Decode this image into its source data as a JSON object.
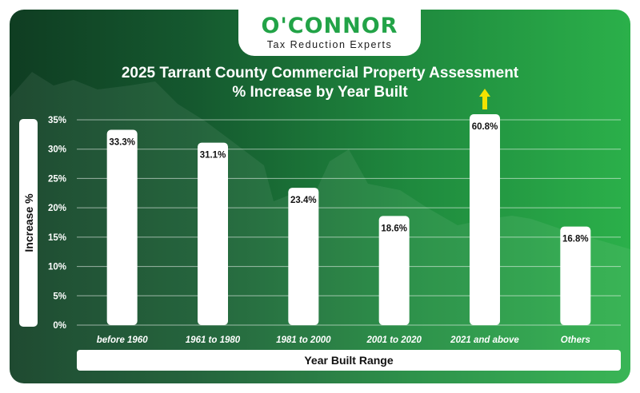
{
  "logo": {
    "name": "O'CONNOR",
    "tagline": "Tax Reduction Experts"
  },
  "colors": {
    "bar": "#ffffff",
    "grid": "#ffffff",
    "arrow": "#f2e200",
    "logo_green": "#22a347",
    "background_dark": "#0f3d22",
    "background_light": "#2bb04a"
  },
  "chart_data": {
    "type": "bar",
    "title": "2025 Tarrant County Commercial Property Assessment",
    "subtitle": "% Increase by Year Built",
    "xlabel": "Year Built Range",
    "ylabel": "Increase %",
    "categories": [
      "before 1960",
      "1961 to 1980",
      "1981 to 2000",
      "2001 to 2020",
      "2021 and above",
      "Others"
    ],
    "values": [
      33.3,
      31.1,
      23.4,
      18.6,
      60.8,
      16.8
    ],
    "data_labels": [
      "33.3%",
      "31.1%",
      "23.4%",
      "18.6%",
      "60.8%",
      "16.8%"
    ],
    "ylim": [
      0,
      35
    ],
    "yticks": [
      0,
      5,
      10,
      15,
      20,
      25,
      30,
      35
    ],
    "ytick_labels": [
      "0%",
      "5%",
      "10%",
      "15%",
      "20%",
      "25%",
      "30%",
      "35%"
    ],
    "grid": true,
    "legend": "none",
    "note": "2021 and above bar exceeds axis maximum (shown with up arrow)"
  }
}
